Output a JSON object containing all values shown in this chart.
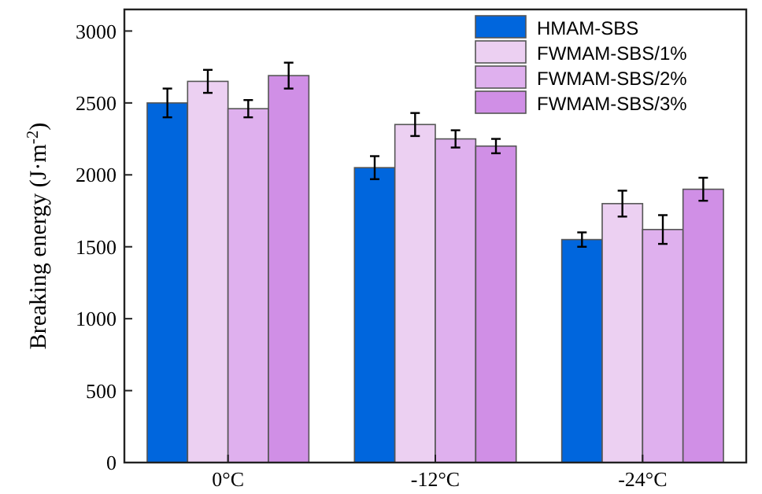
{
  "chart_data": {
    "type": "bar",
    "ylabel": "Breaking energy (J·m$^{-2}$)",
    "categories": [
      "0°C",
      "-12°C",
      "-24°C"
    ],
    "series": [
      {
        "name": "HMAM-SBS",
        "color": "#0066dd",
        "values": [
          2500,
          2050,
          1550
        ],
        "errors": [
          100,
          80,
          50
        ]
      },
      {
        "name": "FWMAM-SBS/1%",
        "color": "#ecd0f2",
        "values": [
          2650,
          2350,
          1800
        ],
        "errors": [
          80,
          80,
          90
        ]
      },
      {
        "name": "FWMAM-SBS/2%",
        "color": "#dfb0ee",
        "values": [
          2460,
          2250,
          1620
        ],
        "errors": [
          60,
          60,
          100
        ]
      },
      {
        "name": "FWMAM-SBS/3%",
        "color": "#d08fe6",
        "values": [
          2690,
          2200,
          1900
        ],
        "errors": [
          90,
          50,
          80
        ]
      }
    ],
    "ylim": [
      0,
      3150
    ],
    "yticks": [
      0,
      500,
      1000,
      1500,
      2000,
      2500,
      3000
    ],
    "legend": "top right",
    "grid": false
  }
}
